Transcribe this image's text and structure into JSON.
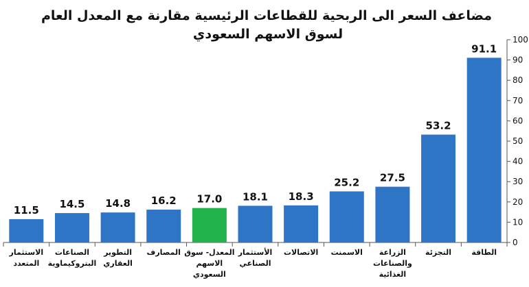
{
  "chart_data": {
    "type": "bar",
    "title_line1": "مضاعف السعر الى الربحية للقطاعات الرئيسية مقارنة مع المعدل العام",
    "title_line2": "لسوق الاسهم السعودي",
    "xlabel": "",
    "ylabel": "",
    "ylim": [
      0,
      100
    ],
    "y_ticks": [
      0,
      10,
      20,
      30,
      40,
      50,
      60,
      70,
      80,
      90,
      100
    ],
    "grid": false,
    "legend": "none",
    "colors": {
      "bar": "#2e75c6",
      "highlight": "#22b24c",
      "text": "#111111",
      "axis": "#555555"
    },
    "categories": [
      [
        "الاستثمار",
        "المتعدد"
      ],
      [
        "الصناعات",
        "البتروكيماوية"
      ],
      [
        "التطوير",
        "العقاري"
      ],
      [
        "المصارف"
      ],
      [
        "المعدل- سوق",
        "الاسهم",
        "السعودي"
      ],
      [
        "الأستثمار",
        "الصناعي"
      ],
      [
        "الاتصالات"
      ],
      [
        "الاسمنت"
      ],
      [
        "الزراعة",
        "والصناعات",
        "الغذائية"
      ],
      [
        "التجزئة"
      ],
      [
        "الطاقة"
      ]
    ],
    "values": [
      11.5,
      14.5,
      14.8,
      16.2,
      17.0,
      18.1,
      18.3,
      25.2,
      27.5,
      53.2,
      91.1
    ],
    "value_labels": [
      "11.5",
      "14.5",
      "14.8",
      "16.2",
      "17.0",
      "18.1",
      "18.3",
      "25.2",
      "27.5",
      "53.2",
      "91.1"
    ],
    "highlight_index": 4
  }
}
